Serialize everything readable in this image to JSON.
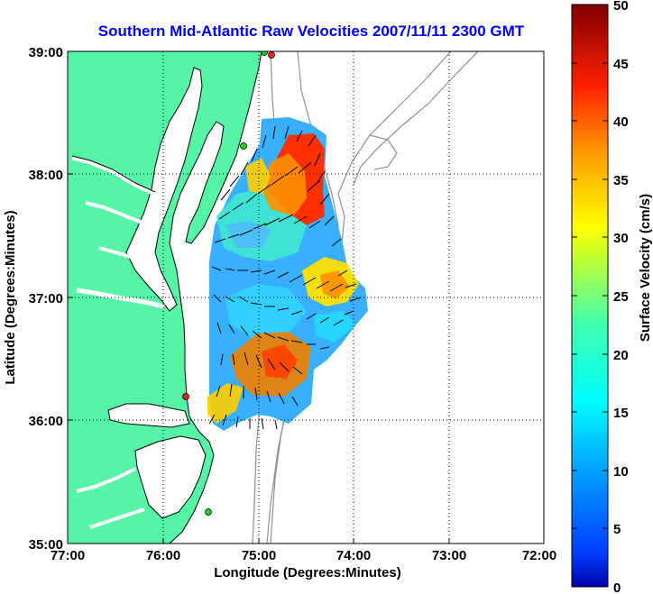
{
  "title": "Southern Mid-Atlantic Raw Velocities 2007/11/11 2300 GMT",
  "x_axis": {
    "label": "Longitude (Degrees:Minutes)",
    "ticks": [
      "77:00",
      "76:00",
      "75:00",
      "74:00",
      "73:00",
      "72:00"
    ]
  },
  "y_axis": {
    "label": "Latitude (Degrees:Minutes)",
    "ticks": [
      "39:00",
      "38:00",
      "37:00",
      "36:00",
      "35:00"
    ]
  },
  "colorbar": {
    "label": "Surface Velocity (cm/s)",
    "ticks": [
      "50",
      "45",
      "40",
      "35",
      "30",
      "25",
      "20",
      "15",
      "10",
      "5",
      "0"
    ],
    "min": 0,
    "max": 50,
    "colormap": "jet"
  },
  "map_extent": {
    "lon_min": -77,
    "lon_max": -72,
    "lat_min": 35,
    "lat_max": 39
  },
  "colors": {
    "land": "#55f5a5",
    "ocean": "#ffffff",
    "bathymetry": "#909090",
    "title": "#0000ff"
  }
}
